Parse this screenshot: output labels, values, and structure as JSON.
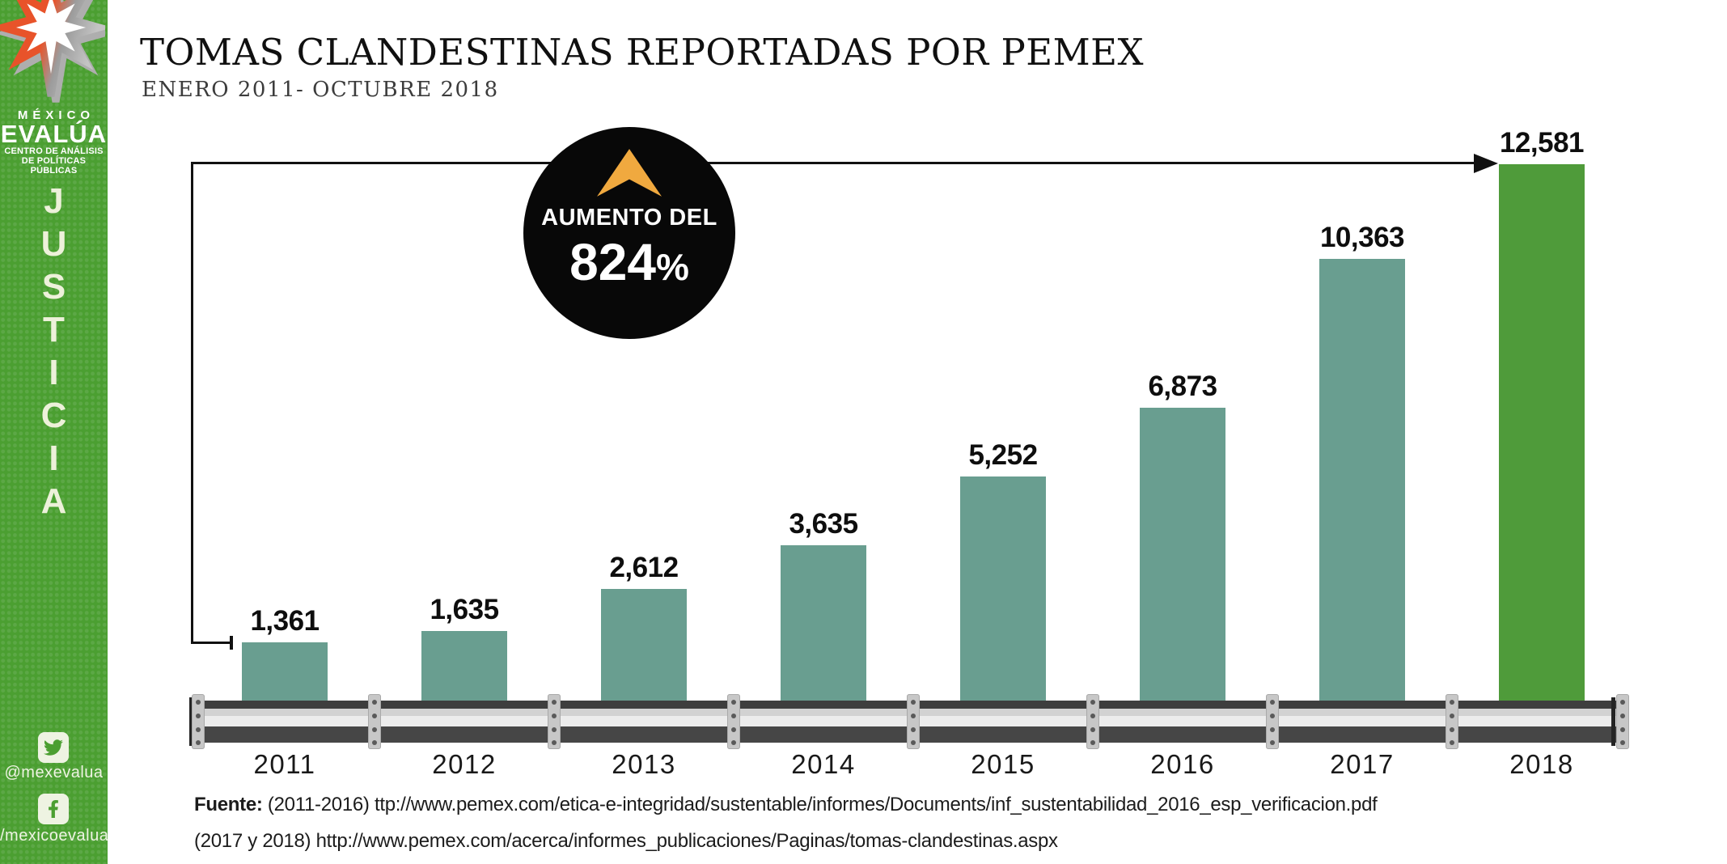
{
  "title": "TOMAS CLANDESTINAS REPORTADAS POR PEMEX",
  "subtitle": "ENERO 2011- OCTUBRE 2018",
  "badge": {
    "line1": "AUMENTO DEL",
    "value": "824",
    "percent_sign": "%",
    "bg_color": "#080808",
    "chevron_color": "#f0a93f"
  },
  "chart_data": {
    "type": "bar",
    "categories": [
      "2011",
      "2012",
      "2013",
      "2014",
      "2015",
      "2016",
      "2017",
      "2018"
    ],
    "values": [
      1361,
      1635,
      2612,
      3635,
      5252,
      6873,
      10363,
      12581
    ],
    "value_labels": [
      "1,361",
      "1,635",
      "2,612",
      "3,635",
      "5,252",
      "6,873",
      "10,363",
      "12,581"
    ],
    "title": "TOMAS CLANDESTINAS REPORTADAS POR PEMEX",
    "subtitle": "ENERO 2011- OCTUBRE 2018",
    "xlabel": "",
    "ylabel": "",
    "ylim": [
      0,
      12581
    ],
    "grid": false,
    "legend": false,
    "bar_color": "#699e90",
    "highlight_color": "#4f9b3a",
    "highlight_index": 7,
    "annotation": "AUMENTO DEL 824%"
  },
  "sidebar": {
    "bg_color": "#4b9f31",
    "logo_line1": "MÉXICO",
    "logo_line2": "EVALÚA",
    "logo_line3": "CENTRO DE ANÁLISIS",
    "logo_line4": "DE POLÍTICAS PÚBLICAS",
    "vertical_word": "JUSTICIA",
    "twitter_handle": "@mexevalua",
    "facebook_handle": "/mexicoevalua",
    "star_orange": "#e8532a",
    "star_silver": "#b9b9b9"
  },
  "footer": {
    "label": "Fuente:",
    "line1_rest": " (2011-2016) ttp://www.pemex.com/etica-e-integridad/sustentable/informes/Documents/inf_sustentabilidad_2016_esp_verificacion.pdf",
    "line2": "(2017 y 2018) http://www.pemex.com/acerca/informes_publicaciones/Paginas/tomas-clandestinas.aspx"
  }
}
